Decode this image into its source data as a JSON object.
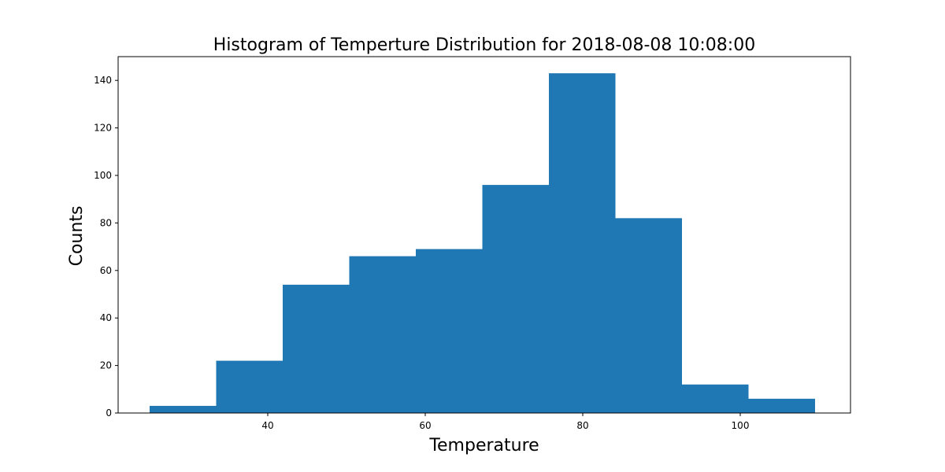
{
  "chart_data": {
    "type": "bar",
    "title": "Histogram of Temperture Distribution for 2018-08-08 10:08:00",
    "xlabel": "Temperature",
    "ylabel": "Counts",
    "bin_edges": [
      25.0,
      33.45,
      41.9,
      50.35,
      58.8,
      67.25,
      75.7,
      84.15,
      92.6,
      101.05,
      109.5
    ],
    "values": [
      3,
      22,
      54,
      66,
      69,
      96,
      143,
      82,
      12,
      6
    ],
    "xlim": [
      21,
      114
    ],
    "ylim": [
      0,
      150
    ],
    "xticks": [
      40,
      60,
      80,
      100
    ],
    "yticks": [
      0,
      20,
      40,
      60,
      80,
      100,
      120,
      140
    ],
    "grid": false,
    "color": "#1f77b4"
  }
}
